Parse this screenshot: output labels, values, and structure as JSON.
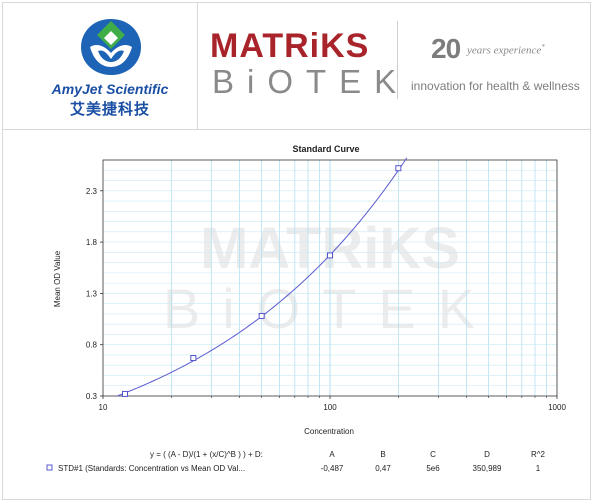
{
  "header": {
    "amyjet": {
      "name": "AmyJet Scientific",
      "name_cn": "艾美捷科技",
      "logo_icon": "amyjet-emblem-icon"
    },
    "matriks": {
      "line1": "MATRiKS",
      "line2": "BiOTEK"
    },
    "anniversary": {
      "number": "20",
      "years_text": "years experience",
      "mark": "*",
      "tagline": "innovation for health & wellness"
    }
  },
  "chart_data": {
    "type": "scatter",
    "title": "Standard Curve",
    "xlabel": "Concentration",
    "ylabel": "Mean OD Value",
    "x_scale": "log",
    "xlim": [
      10,
      1000
    ],
    "ylim": [
      0.3,
      2.6
    ],
    "x_ticks": [
      "10",
      "100",
      "1000"
    ],
    "y_ticks": [
      "0.3",
      "0.8",
      "1.3",
      "1.8",
      "2.3"
    ],
    "grid": true,
    "watermark": {
      "line1": "MATRiKS",
      "line2": "BiOTEK"
    },
    "series": [
      {
        "name": "STD#1 (Standards: Concentration vs Mean OD Val...",
        "marker": "square",
        "color": "#5555cc",
        "points": [
          {
            "x": 12.5,
            "y": 0.32
          },
          {
            "x": 25,
            "y": 0.67
          },
          {
            "x": 50,
            "y": 1.08
          },
          {
            "x": 100,
            "y": 1.67
          },
          {
            "x": 200,
            "y": 2.52
          }
        ]
      }
    ],
    "fit": {
      "equation": "y = ( (A - D)/(1 + (x/C)^B ) ) + D:",
      "columns": [
        "A",
        "B",
        "C",
        "D",
        "R^2"
      ],
      "values": [
        "-0,487",
        "0,47",
        "5e6",
        "350,989",
        "1"
      ],
      "params": {
        "A": -0.487,
        "B": 0.47,
        "C": 5000000,
        "D": 350.989
      }
    }
  }
}
